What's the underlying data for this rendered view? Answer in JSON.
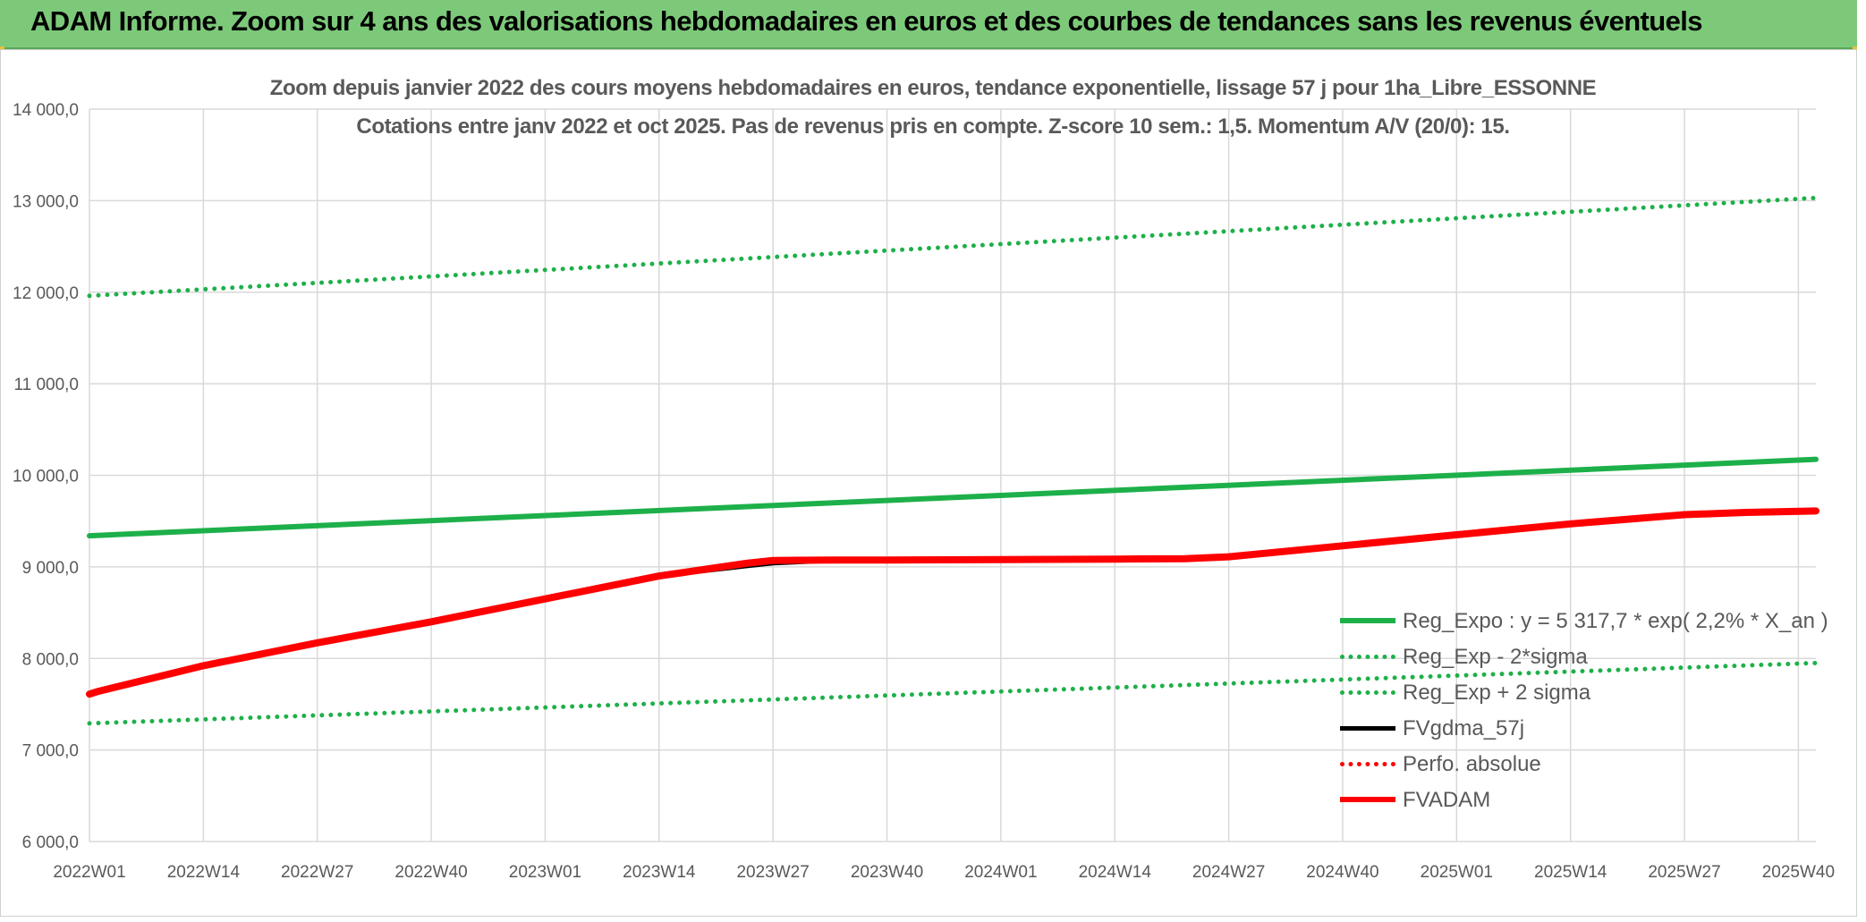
{
  "banner": {
    "title": "ADAM Informe. Zoom sur 4 ans des valorisations hebdomadaires en euros et des courbes de tendances sans les revenus éventuels"
  },
  "colors": {
    "banner": "#7dc97a",
    "green_trend": "#1db04a",
    "black_line": "#000000",
    "red_line": "#ff0000",
    "grid": "#d9d9d9",
    "text": "#595959"
  },
  "chart_data": {
    "type": "line",
    "title_line1": "Zoom depuis janvier 2022 des cours moyens hebdomadaires en euros, tendance exponentielle, lissage 57 j pour 1ha_Libre_ESSONNE",
    "title_line2": "Cotations entre janv 2022 et oct 2025. Pas de revenus pris en compte. Z-score 10 sem.: 1,5. Momentum A/V (20/0): 15.",
    "ylim": [
      6000,
      14000
    ],
    "yticks": [
      "14 000,0",
      "13 000,0",
      "12 000,0",
      "11 000,0",
      "10 000,0",
      "9 000,0",
      "8 000,0",
      "7 000,0",
      "6 000,0"
    ],
    "x_labels": [
      "2022W01",
      "2022W14",
      "2022W27",
      "2022W40",
      "2023W01",
      "2023W14",
      "2023W27",
      "2023W40",
      "2024W01",
      "2024W14",
      "2024W27",
      "2024W40",
      "2025W01",
      "2025W14",
      "2025W27",
      "2025W40"
    ],
    "grid": true,
    "legend_position": "right",
    "series": [
      {
        "name": "Reg_Expo : y = 5 317,7 * exp( 2,2% *  X_an )",
        "style": "solid",
        "color": "#1db04a",
        "width": 6,
        "x": [
          "2022W01",
          "2025W42"
        ],
        "y": [
          9340,
          10175
        ]
      },
      {
        "name": "Reg_Exp - 2*sigma",
        "style": "dotted",
        "color": "#1db04a",
        "width": 5,
        "x": [
          "2022W01",
          "2025W42"
        ],
        "y": [
          7290,
          7950
        ]
      },
      {
        "name": "Reg_Exp + 2 sigma",
        "style": "dotted",
        "color": "#1db04a",
        "width": 5,
        "x": [
          "2022W01",
          "2025W42"
        ],
        "y": [
          11960,
          13030
        ]
      },
      {
        "name": "FVgdma_57j",
        "style": "solid",
        "color": "#000000",
        "width": 5,
        "x": [
          "2022W01",
          "2022W02",
          "2022W14",
          "2022W27",
          "2022W40",
          "2023W01",
          "2023W14",
          "2023W24",
          "2023W27",
          "2023W34",
          "2023W40",
          "2024W01",
          "2024W14",
          "2024W22",
          "2024W27",
          "2024W40",
          "2025W01",
          "2025W14",
          "2025W27",
          "2025W34",
          "2025W42"
        ],
        "y": [
          7610,
          7640,
          7920,
          8170,
          8400,
          8650,
          8900,
          9010,
          9040,
          9070,
          9075,
          9080,
          9090,
          9095,
          9120,
          9230,
          9350,
          9470,
          9570,
          9595,
          9610
        ]
      },
      {
        "name": "Perfo. absolue",
        "style": "dotted",
        "color": "#ff0000",
        "width": 4,
        "x": [],
        "y": []
      },
      {
        "name": "FVADAM",
        "style": "solid",
        "color": "#ff0000",
        "width": 8,
        "x": [
          "2022W01",
          "2022W02",
          "2022W14",
          "2022W27",
          "2022W40",
          "2023W01",
          "2023W14",
          "2023W24",
          "2023W27",
          "2023W34",
          "2023W40",
          "2024W01",
          "2024W14",
          "2024W22",
          "2024W27",
          "2024W40",
          "2025W01",
          "2025W14",
          "2025W27",
          "2025W34",
          "2025W42"
        ],
        "y": [
          7610,
          7640,
          7920,
          8170,
          8400,
          8650,
          8900,
          9040,
          9070,
          9075,
          9075,
          9080,
          9085,
          9090,
          9110,
          9230,
          9350,
          9470,
          9570,
          9595,
          9610
        ]
      }
    ]
  }
}
